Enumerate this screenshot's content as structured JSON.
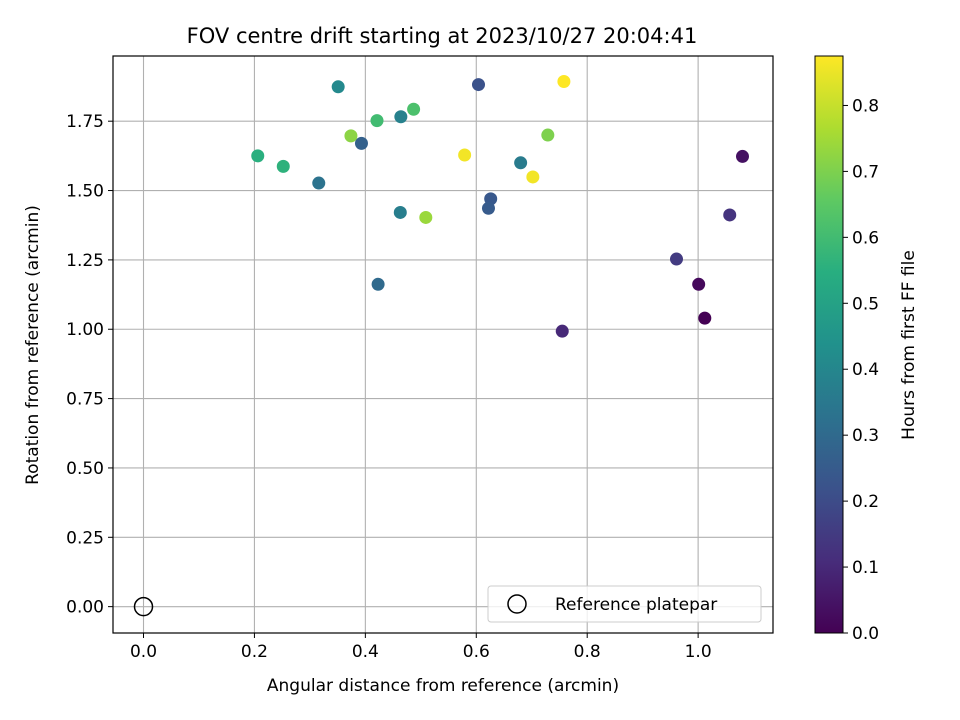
{
  "chart_data": {
    "type": "scatter",
    "title": "FOV centre drift starting at 2023/10/27 20:04:41",
    "xlabel": "Angular distance from reference (arcmin)",
    "ylabel": "Rotation from reference (arcmin)",
    "xlim": [
      -0.055,
      1.135
    ],
    "ylim": [
      -0.095,
      1.985
    ],
    "xticks": [
      0.0,
      0.2,
      0.4,
      0.6,
      0.8,
      1.0
    ],
    "xtick_labels": [
      "0.0",
      "0.2",
      "0.4",
      "0.6",
      "0.8",
      "1.0"
    ],
    "yticks": [
      0.0,
      0.25,
      0.5,
      0.75,
      1.0,
      1.25,
      1.5,
      1.75
    ],
    "ytick_labels": [
      "0.00",
      "0.25",
      "0.50",
      "0.75",
      "1.00",
      "1.25",
      "1.50",
      "1.75"
    ],
    "grid": true,
    "colormap": "viridis",
    "colorbar": {
      "label": "Hours from first FF file",
      "range": [
        0.0,
        0.875
      ],
      "ticks": [
        0.0,
        0.1,
        0.2,
        0.3,
        0.4,
        0.5,
        0.6,
        0.7,
        0.8
      ],
      "tick_labels": [
        "0.0",
        "0.1",
        "0.2",
        "0.3",
        "0.4",
        "0.5",
        "0.6",
        "0.7",
        "0.8"
      ]
    },
    "legend": {
      "placement": "lower-right",
      "entries": [
        {
          "label": "Reference platepar",
          "marker": "hollow-circle"
        }
      ]
    },
    "reference_point": {
      "x": 0.0,
      "y": 0.0
    },
    "points": [
      {
        "x": 1.012,
        "y": 1.04,
        "hours": 0.0
      },
      {
        "x": 1.001,
        "y": 1.162,
        "hours": 0.02
      },
      {
        "x": 1.08,
        "y": 1.623,
        "hours": 0.04
      },
      {
        "x": 0.755,
        "y": 0.993,
        "hours": 0.1
      },
      {
        "x": 1.057,
        "y": 1.412,
        "hours": 0.13
      },
      {
        "x": 0.961,
        "y": 1.253,
        "hours": 0.15
      },
      {
        "x": 0.604,
        "y": 1.882,
        "hours": 0.22
      },
      {
        "x": 0.626,
        "y": 1.47,
        "hours": 0.24
      },
      {
        "x": 0.622,
        "y": 1.436,
        "hours": 0.25
      },
      {
        "x": 0.393,
        "y": 1.67,
        "hours": 0.27
      },
      {
        "x": 0.423,
        "y": 1.162,
        "hours": 0.3
      },
      {
        "x": 0.316,
        "y": 1.527,
        "hours": 0.33
      },
      {
        "x": 0.68,
        "y": 1.6,
        "hours": 0.36
      },
      {
        "x": 0.463,
        "y": 1.421,
        "hours": 0.37
      },
      {
        "x": 0.464,
        "y": 1.766,
        "hours": 0.38
      },
      {
        "x": 0.351,
        "y": 1.874,
        "hours": 0.41
      },
      {
        "x": 0.206,
        "y": 1.625,
        "hours": 0.55
      },
      {
        "x": 0.252,
        "y": 1.587,
        "hours": 0.56
      },
      {
        "x": 0.421,
        "y": 1.752,
        "hours": 0.6
      },
      {
        "x": 0.487,
        "y": 1.793,
        "hours": 0.62
      },
      {
        "x": 0.729,
        "y": 1.7,
        "hours": 0.7
      },
      {
        "x": 0.374,
        "y": 1.697,
        "hours": 0.72
      },
      {
        "x": 0.509,
        "y": 1.403,
        "hours": 0.74
      },
      {
        "x": 0.579,
        "y": 1.628,
        "hours": 0.86
      },
      {
        "x": 0.702,
        "y": 1.549,
        "hours": 0.86
      },
      {
        "x": 0.758,
        "y": 1.893,
        "hours": 0.875
      }
    ]
  }
}
